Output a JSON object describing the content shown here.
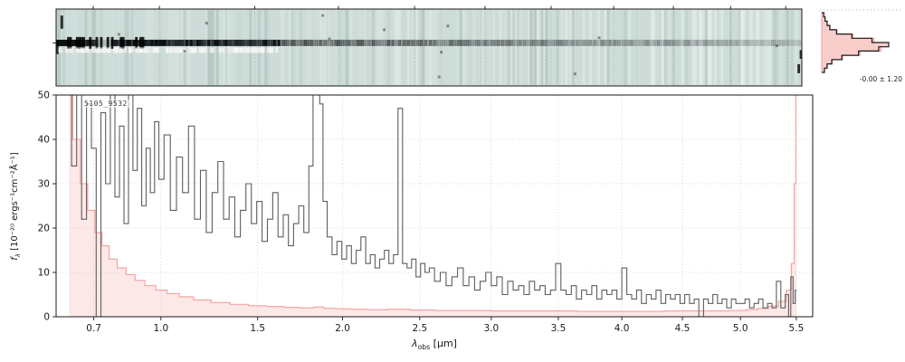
{
  "figure": {
    "xlabel": {
      "symbol": "λ",
      "sub": "obs",
      "rest": " [μm]"
    },
    "ylabel": {
      "symbol": "f",
      "sub": "λ",
      "rest": " [10⁻²⁰ ergs⁻¹cm⁻²Å⁻¹]"
    },
    "colors": {
      "background": "#ffffff",
      "flux": "#5f5f5f",
      "uncertainty": "#f2a19d",
      "uncertainty_fill": "rgba(246,180,176,0.30)",
      "panel2d_bg": "#cddcd8",
      "grid": "#c9c9c9",
      "panel2d_grid": "#93aaa5",
      "text": "#1a1a1a"
    }
  },
  "chart_data": [
    {
      "type": "heatmap",
      "name": "2d-spectrum-cutout",
      "description": "Rectified 2D spectrum strip: dark horizontal spectral trace across full wavelength range on pale teal background, blackest at 0.6-1.3 um, fading and noisier toward red end, white negative band below trace at blue end, vertical noise striping",
      "x_range_um": [
        0.55,
        5.65
      ],
      "trace_center_frac": 0.44,
      "noise_seed": 11
    },
    {
      "type": "line",
      "name": "1d-extracted-spectrum",
      "title": "5105_9532",
      "xlabel": "λ_obs [μm]",
      "ylabel": "f_λ [10⁻²⁰ ergs⁻¹ cm⁻² Å⁻¹]",
      "x_scale": "power",
      "x_power": 0.62,
      "xlim": [
        0.55,
        5.65
      ],
      "ylim": [
        0,
        50
      ],
      "x_ticks": [
        0.7,
        1.0,
        1.5,
        2.0,
        2.5,
        3.0,
        3.5,
        4.0,
        4.5,
        5.0,
        5.5
      ],
      "y_ticks": [
        0,
        10,
        20,
        30,
        40,
        50
      ],
      "grid": "dotted",
      "series": [
        {
          "name": "flux",
          "color": "#5f5f5f",
          "style": "steps",
          "x": [
            0.6,
            0.62,
            0.64,
            0.66,
            0.68,
            0.7,
            0.72,
            0.74,
            0.76,
            0.78,
            0.8,
            0.82,
            0.84,
            0.86,
            0.88,
            0.9,
            0.92,
            0.94,
            0.96,
            0.98,
            1.0,
            1.03,
            1.06,
            1.09,
            1.12,
            1.15,
            1.18,
            1.21,
            1.24,
            1.27,
            1.3,
            1.33,
            1.36,
            1.39,
            1.42,
            1.45,
            1.48,
            1.51,
            1.54,
            1.57,
            1.6,
            1.63,
            1.66,
            1.69,
            1.72,
            1.75,
            1.78,
            1.81,
            1.83,
            1.85,
            1.87,
            1.89,
            1.92,
            1.95,
            1.98,
            2.01,
            2.04,
            2.07,
            2.1,
            2.13,
            2.16,
            2.19,
            2.22,
            2.25,
            2.28,
            2.31,
            2.34,
            2.37,
            2.4,
            2.43,
            2.46,
            2.49,
            2.52,
            2.55,
            2.58,
            2.62,
            2.66,
            2.7,
            2.74,
            2.78,
            2.82,
            2.86,
            2.9,
            2.94,
            2.98,
            3.02,
            3.06,
            3.1,
            3.14,
            3.18,
            3.22,
            3.26,
            3.3,
            3.34,
            3.38,
            3.42,
            3.46,
            3.5,
            3.54,
            3.58,
            3.62,
            3.66,
            3.7,
            3.74,
            3.78,
            3.82,
            3.86,
            3.9,
            3.94,
            3.98,
            4.02,
            4.06,
            4.1,
            4.14,
            4.18,
            4.22,
            4.26,
            4.3,
            4.34,
            4.38,
            4.42,
            4.46,
            4.5,
            4.54,
            4.58,
            4.62,
            4.66,
            4.7,
            4.74,
            4.78,
            4.82,
            4.86,
            4.9,
            4.94,
            4.98,
            5.02,
            5.06,
            5.1,
            5.14,
            5.18,
            5.22,
            5.26,
            5.3,
            5.34,
            5.38,
            5.42,
            5.44,
            5.46,
            5.48,
            5.5
          ],
          "y": [
            52,
            34,
            55,
            22,
            48,
            38,
            0,
            46,
            30,
            52,
            27,
            43,
            21,
            50,
            33,
            47,
            25,
            38,
            28,
            44,
            31,
            41,
            24,
            36,
            28,
            43,
            22,
            33,
            19,
            28,
            35,
            22,
            27,
            18,
            24,
            30,
            21,
            26,
            17,
            22,
            28,
            18,
            23,
            16,
            21,
            25,
            19,
            34,
            52,
            60,
            48,
            26,
            18,
            14,
            17,
            13,
            16,
            12,
            15,
            18,
            12,
            14,
            11,
            13,
            15,
            12,
            14,
            47,
            12,
            11,
            13,
            9,
            12,
            10,
            11,
            8,
            10,
            7,
            9,
            11,
            7,
            9,
            6,
            8,
            10,
            7,
            9,
            5,
            8,
            6,
            7,
            5,
            8,
            6,
            7,
            5,
            6,
            12,
            6,
            5,
            7,
            4,
            6,
            5,
            7,
            4,
            6,
            5,
            6,
            4,
            11,
            5,
            4,
            6,
            3,
            5,
            4,
            6,
            3,
            5,
            4,
            5,
            3,
            5,
            3,
            4,
            0,
            4,
            3,
            5,
            3,
            4,
            2,
            4,
            3,
            3,
            4,
            2,
            3,
            4,
            2,
            3,
            2,
            8,
            2,
            5,
            0,
            9,
            3,
            6
          ]
        },
        {
          "name": "uncertainty",
          "color": "#f2a19d",
          "style": "steps",
          "x": [
            0.6,
            0.63,
            0.66,
            0.69,
            0.72,
            0.75,
            0.78,
            0.82,
            0.86,
            0.9,
            0.95,
            1.0,
            1.06,
            1.12,
            1.2,
            1.3,
            1.4,
            1.5,
            1.6,
            1.7,
            1.8,
            1.85,
            1.92,
            2.0,
            2.1,
            2.2,
            2.37,
            2.5,
            2.7,
            2.9,
            3.1,
            3.3,
            3.5,
            3.8,
            4.0,
            4.2,
            4.5,
            4.8,
            5.0,
            5.1,
            5.2,
            5.3,
            5.38,
            5.44,
            5.47,
            5.49,
            5.5
          ],
          "y": [
            52,
            40,
            30,
            24,
            19,
            16,
            13,
            11,
            9.5,
            8.2,
            7.0,
            6.0,
            5.2,
            4.5,
            3.8,
            3.2,
            2.8,
            2.5,
            2.3,
            2.1,
            2.0,
            2.2,
            1.9,
            1.8,
            1.7,
            1.6,
            1.7,
            1.5,
            1.4,
            1.4,
            1.3,
            1.3,
            1.3,
            1.2,
            1.2,
            1.2,
            1.3,
            1.3,
            1.4,
            1.6,
            1.9,
            2.4,
            3.5,
            6,
            12,
            30,
            52
          ]
        }
      ]
    },
    {
      "type": "bar",
      "name": "pixel-value-histogram",
      "orientation": "horizontal",
      "values": [
        0.03,
        0.05,
        0.08,
        0.12,
        0.22,
        0.45,
        0.75,
        1.0,
        0.85,
        0.55,
        0.3,
        0.15,
        0.08,
        0.04
      ],
      "annotation": "-0.00 ± 1.20"
    }
  ]
}
